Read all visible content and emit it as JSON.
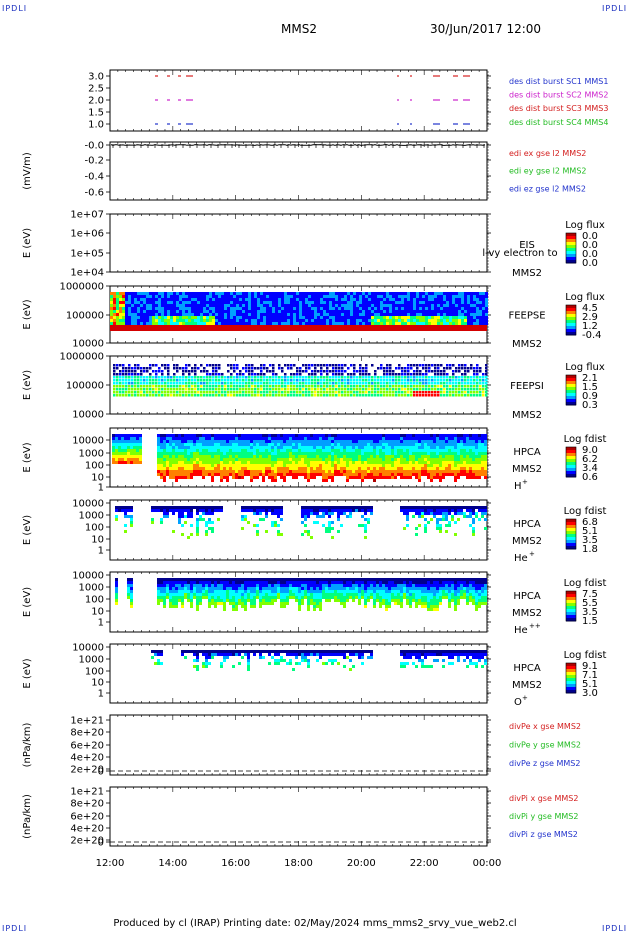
{
  "header": {
    "corner_label": "IPDLI",
    "title_left": "MMS2",
    "title_right": "30/Jun/2017 12:00"
  },
  "footer": "Produced by cl (IRAP)   Printing date: 02/May/2024   mms_mms2_srvy_vue_web2.cl",
  "time_axis": {
    "labels": [
      "12:00",
      "14:00",
      "16:00",
      "18:00",
      "20:00",
      "22:00",
      "00:00"
    ]
  },
  "colors": {
    "red": "#d42020",
    "magenta": "#cc22cc",
    "green": "#22bb22",
    "blue": "#2233cc",
    "spectrum": [
      "#00008c",
      "#0000ff",
      "#00a0ff",
      "#00ffff",
      "#00ff80",
      "#80ff00",
      "#ffff00",
      "#ff8000",
      "#ff0000",
      "#b00000"
    ]
  },
  "chart_data": [
    {
      "id": "des-dist-burst",
      "type": "scatter",
      "yticks": [
        "3.0",
        "2.5",
        "2.0",
        "1.5",
        "1.0"
      ],
      "legend": [
        {
          "label": "des dist burst SC1 MMS1",
          "color": "#2233cc"
        },
        {
          "label": "des dist burst SC2 MMS2",
          "color": "#cc22cc"
        },
        {
          "label": "des dist burst SC3 MMS3",
          "color": "#d42020"
        },
        {
          "label": "des dist burst SC4 MMS4",
          "color": "#22bb22"
        }
      ]
    },
    {
      "id": "edi-e",
      "type": "line",
      "ylabel": "(mV/m)",
      "yticks": [
        "-0.0",
        "-0.2",
        "-0.4",
        "-0.6"
      ],
      "legend": [
        {
          "label": "edi ex gse l2 MMS2",
          "color": "#d42020"
        },
        {
          "label": "edi ey gse l2 MMS2",
          "color": "#22bb22"
        },
        {
          "label": "edi ez gse l2 MMS2",
          "color": "#2233cc"
        }
      ]
    },
    {
      "id": "eis",
      "type": "heatmap",
      "ylabel": "E (eV)",
      "yticks": [
        "1e+07",
        "1e+06",
        "1e+05",
        "1e+04"
      ],
      "instrument": "EIS",
      "overlay": "l-vy electron to",
      "sc": "MMS2",
      "colorbar_title": "Log flux",
      "colorbar_ticks": [
        "0.0",
        "0.0",
        "0.0",
        "0.0"
      ]
    },
    {
      "id": "feepse",
      "type": "heatmap",
      "ylabel": "E (eV)",
      "yticks": [
        "1000000",
        "100000",
        "10000"
      ],
      "instrument": "FEEPSE",
      "sc": "MMS2",
      "colorbar_title": "Log flux",
      "colorbar_ticks": [
        "4.5",
        "2.9",
        "1.2",
        "-0.4"
      ]
    },
    {
      "id": "feepsi",
      "type": "heatmap",
      "ylabel": "E (eV)",
      "yticks": [
        "1000000",
        "100000",
        "10000"
      ],
      "instrument": "FEEPSI",
      "sc": "MMS2",
      "colorbar_title": "Log flux",
      "colorbar_ticks": [
        "2.1",
        "1.5",
        "0.9",
        "0.3"
      ]
    },
    {
      "id": "hpca-h",
      "type": "heatmap",
      "ylabel": "E (eV)",
      "yticks": [
        "10000",
        "1000",
        "100",
        "10",
        "1"
      ],
      "instrument": "HPCA",
      "sc": "MMS2",
      "species": "H",
      "charge": "+",
      "colorbar_title": "Log fdist",
      "colorbar_ticks": [
        "9.0",
        "6.2",
        "3.4",
        "0.6"
      ]
    },
    {
      "id": "hpca-he",
      "type": "heatmap",
      "ylabel": "E (eV)",
      "yticks": [
        "10000",
        "1000",
        "100",
        "10",
        "1"
      ],
      "instrument": "HPCA",
      "sc": "MMS2",
      "species": "He",
      "charge": "+",
      "colorbar_title": "Log fdist",
      "colorbar_ticks": [
        "6.8",
        "5.1",
        "3.5",
        "1.8"
      ]
    },
    {
      "id": "hpca-he2",
      "type": "heatmap",
      "ylabel": "E (eV)",
      "yticks": [
        "10000",
        "1000",
        "100",
        "10",
        "1"
      ],
      "instrument": "HPCA",
      "sc": "MMS2",
      "species": "He",
      "charge": "++",
      "colorbar_title": "Log fdist",
      "colorbar_ticks": [
        "7.5",
        "5.5",
        "3.5",
        "1.5"
      ]
    },
    {
      "id": "hpca-o",
      "type": "heatmap",
      "ylabel": "E (eV)",
      "yticks": [
        "10000",
        "1000",
        "100",
        "10",
        "1"
      ],
      "instrument": "HPCA",
      "sc": "MMS2",
      "species": "O",
      "charge": "+",
      "colorbar_title": "Log fdist",
      "colorbar_ticks": [
        "9.1",
        "7.1",
        "5.1",
        "3.0"
      ]
    },
    {
      "id": "divpe",
      "type": "line",
      "ylabel": "(nPa/km)",
      "yticks": [
        "1e+21",
        "8e+20",
        "6e+20",
        "4e+20",
        "2e+20",
        "0"
      ],
      "legend": [
        {
          "label": "divPe x gse MMS2",
          "color": "#d42020"
        },
        {
          "label": "divPe y gse MMS2",
          "color": "#22bb22"
        },
        {
          "label": "divPe z gse MMS2",
          "color": "#2233cc"
        }
      ]
    },
    {
      "id": "divpi",
      "type": "line",
      "ylabel": "(nPa/km)",
      "yticks": [
        "1e+21",
        "8e+20",
        "6e+20",
        "4e+20",
        "2e+20",
        "0"
      ],
      "legend": [
        {
          "label": "divPi x gse MMS2",
          "color": "#d42020"
        },
        {
          "label": "divPi y gse MMS2",
          "color": "#22bb22"
        },
        {
          "label": "divPi z gse MMS2",
          "color": "#2233cc"
        }
      ]
    }
  ]
}
